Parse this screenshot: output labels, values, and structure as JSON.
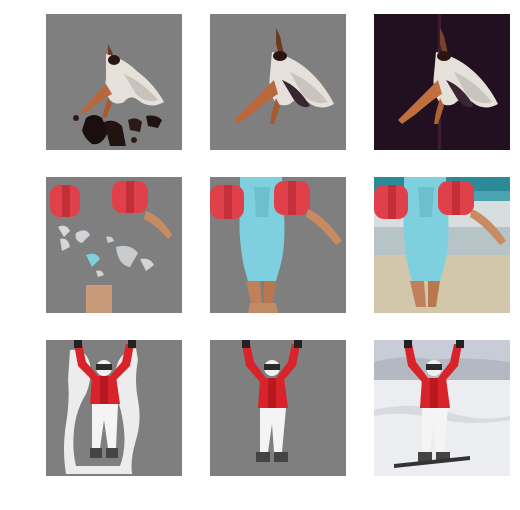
{
  "figure": {
    "rows": [
      {
        "subject": "dancer",
        "tiles": [
          {
            "label": "coarse-mask",
            "background": "#7f7f7f"
          },
          {
            "label": "refined-mask",
            "background": "#7f7f7f"
          },
          {
            "label": "original-photo",
            "background": "#1a0f1e"
          }
        ]
      },
      {
        "subject": "child-at-beach",
        "tiles": [
          {
            "label": "coarse-mask",
            "background": "#7f7f7f"
          },
          {
            "label": "refined-mask",
            "background": "#7f7f7f"
          },
          {
            "label": "original-photo",
            "background": "#cfc4ac"
          }
        ]
      },
      {
        "subject": "skier",
        "tiles": [
          {
            "label": "coarse-mask",
            "background": "#7f7f7f"
          },
          {
            "label": "refined-mask",
            "background": "#7f7f7f"
          },
          {
            "label": "original-photo",
            "background": "#dcdde3"
          }
        ]
      }
    ],
    "colors": {
      "mask_gray": "#7f7f7f",
      "jacket_red": "#d8232a",
      "swimsuit_blue": "#7fd0de",
      "armband_red": "#e0404a",
      "skin": "#c07a4a",
      "dress_white": "#e8e2dc"
    }
  }
}
